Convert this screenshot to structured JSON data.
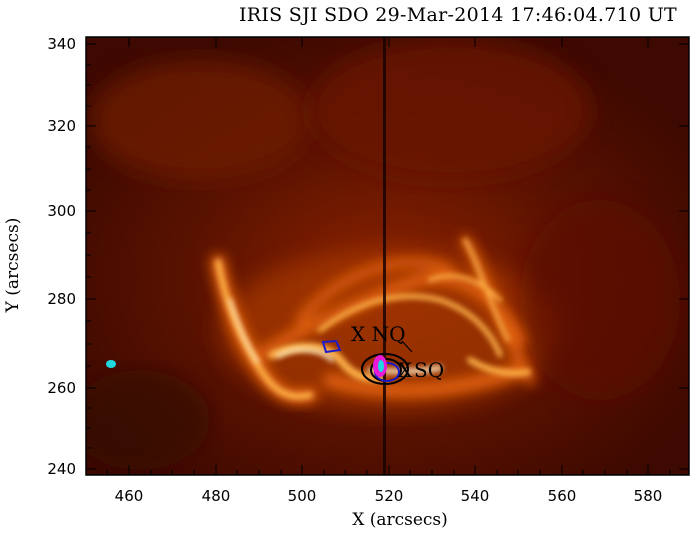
{
  "title": "IRIS SJI SDO 29-Mar-2014 17:46:04.710 UT",
  "xlabel": "X (arcsecs)",
  "ylabel": "Y (arcsecs)",
  "xticks": [
    "460",
    "480",
    "500",
    "520",
    "540",
    "560",
    "580"
  ],
  "yticks": [
    "240",
    "260",
    "280",
    "300",
    "320",
    "340"
  ],
  "annotations": {
    "nq": "X NQ",
    "sq_x": "X",
    "sq": "SQ"
  },
  "image_colors": {
    "background": "#4a0b00",
    "loop_core": "#fff0c8",
    "loop_mid": "#ff8a1a",
    "contour_black": "#000000",
    "contour_blue": "#1b1bcc",
    "contour_magenta": "#e81ad8",
    "contour_cyan": "#1fd8e0"
  }
}
